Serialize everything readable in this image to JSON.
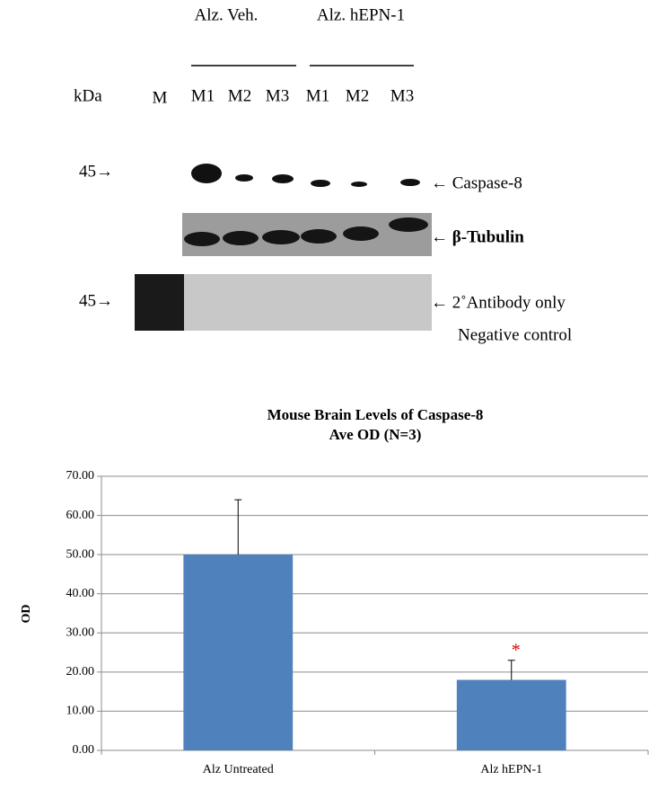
{
  "blot": {
    "group_labels": [
      "Alz. Veh.",
      "Alz. hEPN-1"
    ],
    "kda_label": "kDa",
    "marker_label": "M",
    "lane_labels": [
      "M1",
      "M2",
      "M3",
      "M1",
      "M2",
      "M3"
    ],
    "size_marks": [
      "45→",
      "45→"
    ],
    "band_labels": [
      "← Caspase-8",
      "← β-Tubulin",
      "← 2˚Antibody only",
      "Negative control"
    ]
  },
  "chart_data": {
    "type": "bar",
    "title": [
      "Mouse Brain Levels of Caspase-8",
      "Ave OD (N=3)"
    ],
    "y_label": "OD",
    "categories": [
      "Alz Untreated",
      "Alz hEPN-1"
    ],
    "values": [
      50,
      18
    ],
    "errors": [
      14,
      5
    ],
    "significance_markers": [
      null,
      "*"
    ],
    "color": "#4f81bd",
    "ylim": [
      0,
      70
    ],
    "yticks": [
      {
        "value": 0,
        "label": "0.00"
      },
      {
        "value": 10,
        "label": "10.00"
      },
      {
        "value": 20,
        "label": "20.00"
      },
      {
        "value": 30,
        "label": "30.00"
      },
      {
        "value": 40,
        "label": "40.00"
      },
      {
        "value": 50,
        "label": "50.00"
      },
      {
        "value": 60,
        "label": "60.00"
      },
      {
        "value": 70,
        "label": "70.00"
      }
    ],
    "grid": true
  }
}
